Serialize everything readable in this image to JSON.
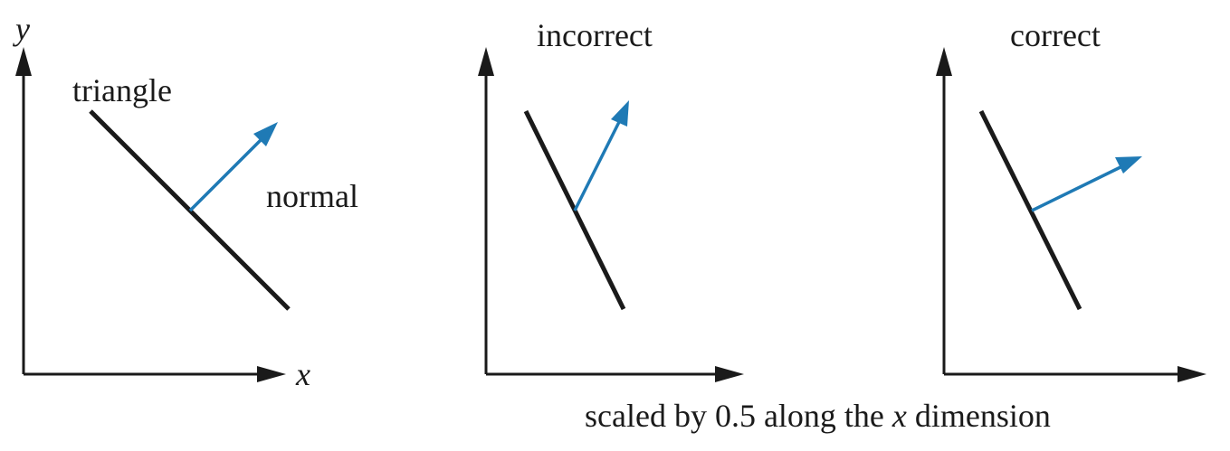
{
  "colors": {
    "triangle": "#1a1a1a",
    "normal": "#1f7ab5",
    "axes": "#1a1a1a"
  },
  "panels": [
    {
      "axis_x_label": "x",
      "axis_y_label": "y",
      "triangle_label": "triangle",
      "normal_label": "normal"
    },
    {
      "title": "incorrect"
    },
    {
      "title": "correct"
    }
  ],
  "caption": {
    "prefix": "scaled by 0.5 along the ",
    "variable": "x",
    "suffix": " dimension"
  }
}
